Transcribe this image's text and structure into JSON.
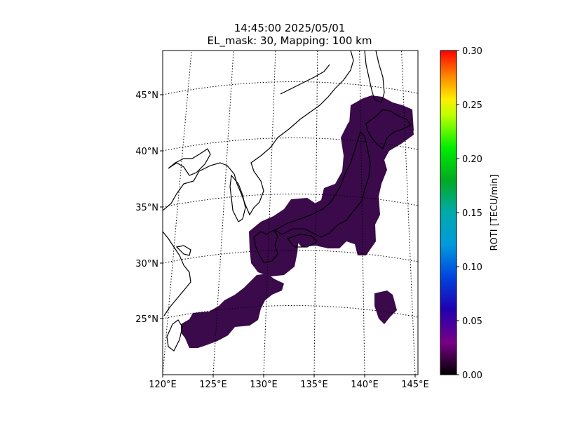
{
  "title": {
    "line1": "14:45:00 2025/05/01",
    "line2": "EL_mask: 30, Mapping: 100 km"
  },
  "map": {
    "lon_range": [
      120,
      145
    ],
    "lat_range": [
      20,
      49
    ],
    "projection": "conic",
    "meridians": [
      120,
      125,
      130,
      135,
      140,
      145
    ],
    "meridian_labels": [
      "120°E",
      "125°E",
      "130°E",
      "135°E",
      "140°E",
      "145°E"
    ],
    "parallels": [
      25,
      30,
      35,
      40,
      45
    ],
    "parallel_labels": [
      "25°N",
      "30°N",
      "35°N",
      "40°N",
      "45°N"
    ],
    "graticule_style": "dotted",
    "coastline_color": "#000000",
    "data_region": "Japan archipelago and Ryukyu Islands",
    "roti_level_typical": 0.03
  },
  "colorbar": {
    "label": "ROTI [TECU/min]",
    "min": 0.0,
    "max": 0.3,
    "ticks": [
      "0.00",
      "0.05",
      "0.10",
      "0.15",
      "0.20",
      "0.25",
      "0.30"
    ],
    "colormap": "nipy_spectral"
  }
}
